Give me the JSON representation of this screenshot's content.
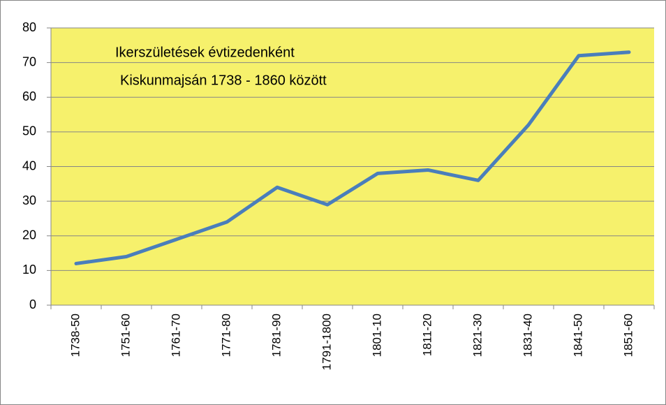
{
  "chart_data": {
    "type": "line",
    "title": [
      "Ikerszületések évtizedenként",
      "Kiskunmajsán 1738 - 1860 között"
    ],
    "categories": [
      "1738-50",
      "1751-60",
      "1761-70",
      "1771-80",
      "1781-90",
      "1791-1800",
      "1801-10",
      "1811-20",
      "1821-30",
      "1831-40",
      "1841-50",
      "1851-60"
    ],
    "series": [
      {
        "name": null,
        "color": "#4a7ebb",
        "values": [
          12,
          14,
          19,
          24,
          34,
          29,
          38,
          39,
          36,
          52,
          72,
          73
        ]
      }
    ],
    "ylim": [
      0,
      80
    ],
    "yticks": [
      0,
      10,
      20,
      30,
      40,
      50,
      60,
      70,
      80
    ],
    "grid": true,
    "plot_background": "#f6f16c"
  }
}
